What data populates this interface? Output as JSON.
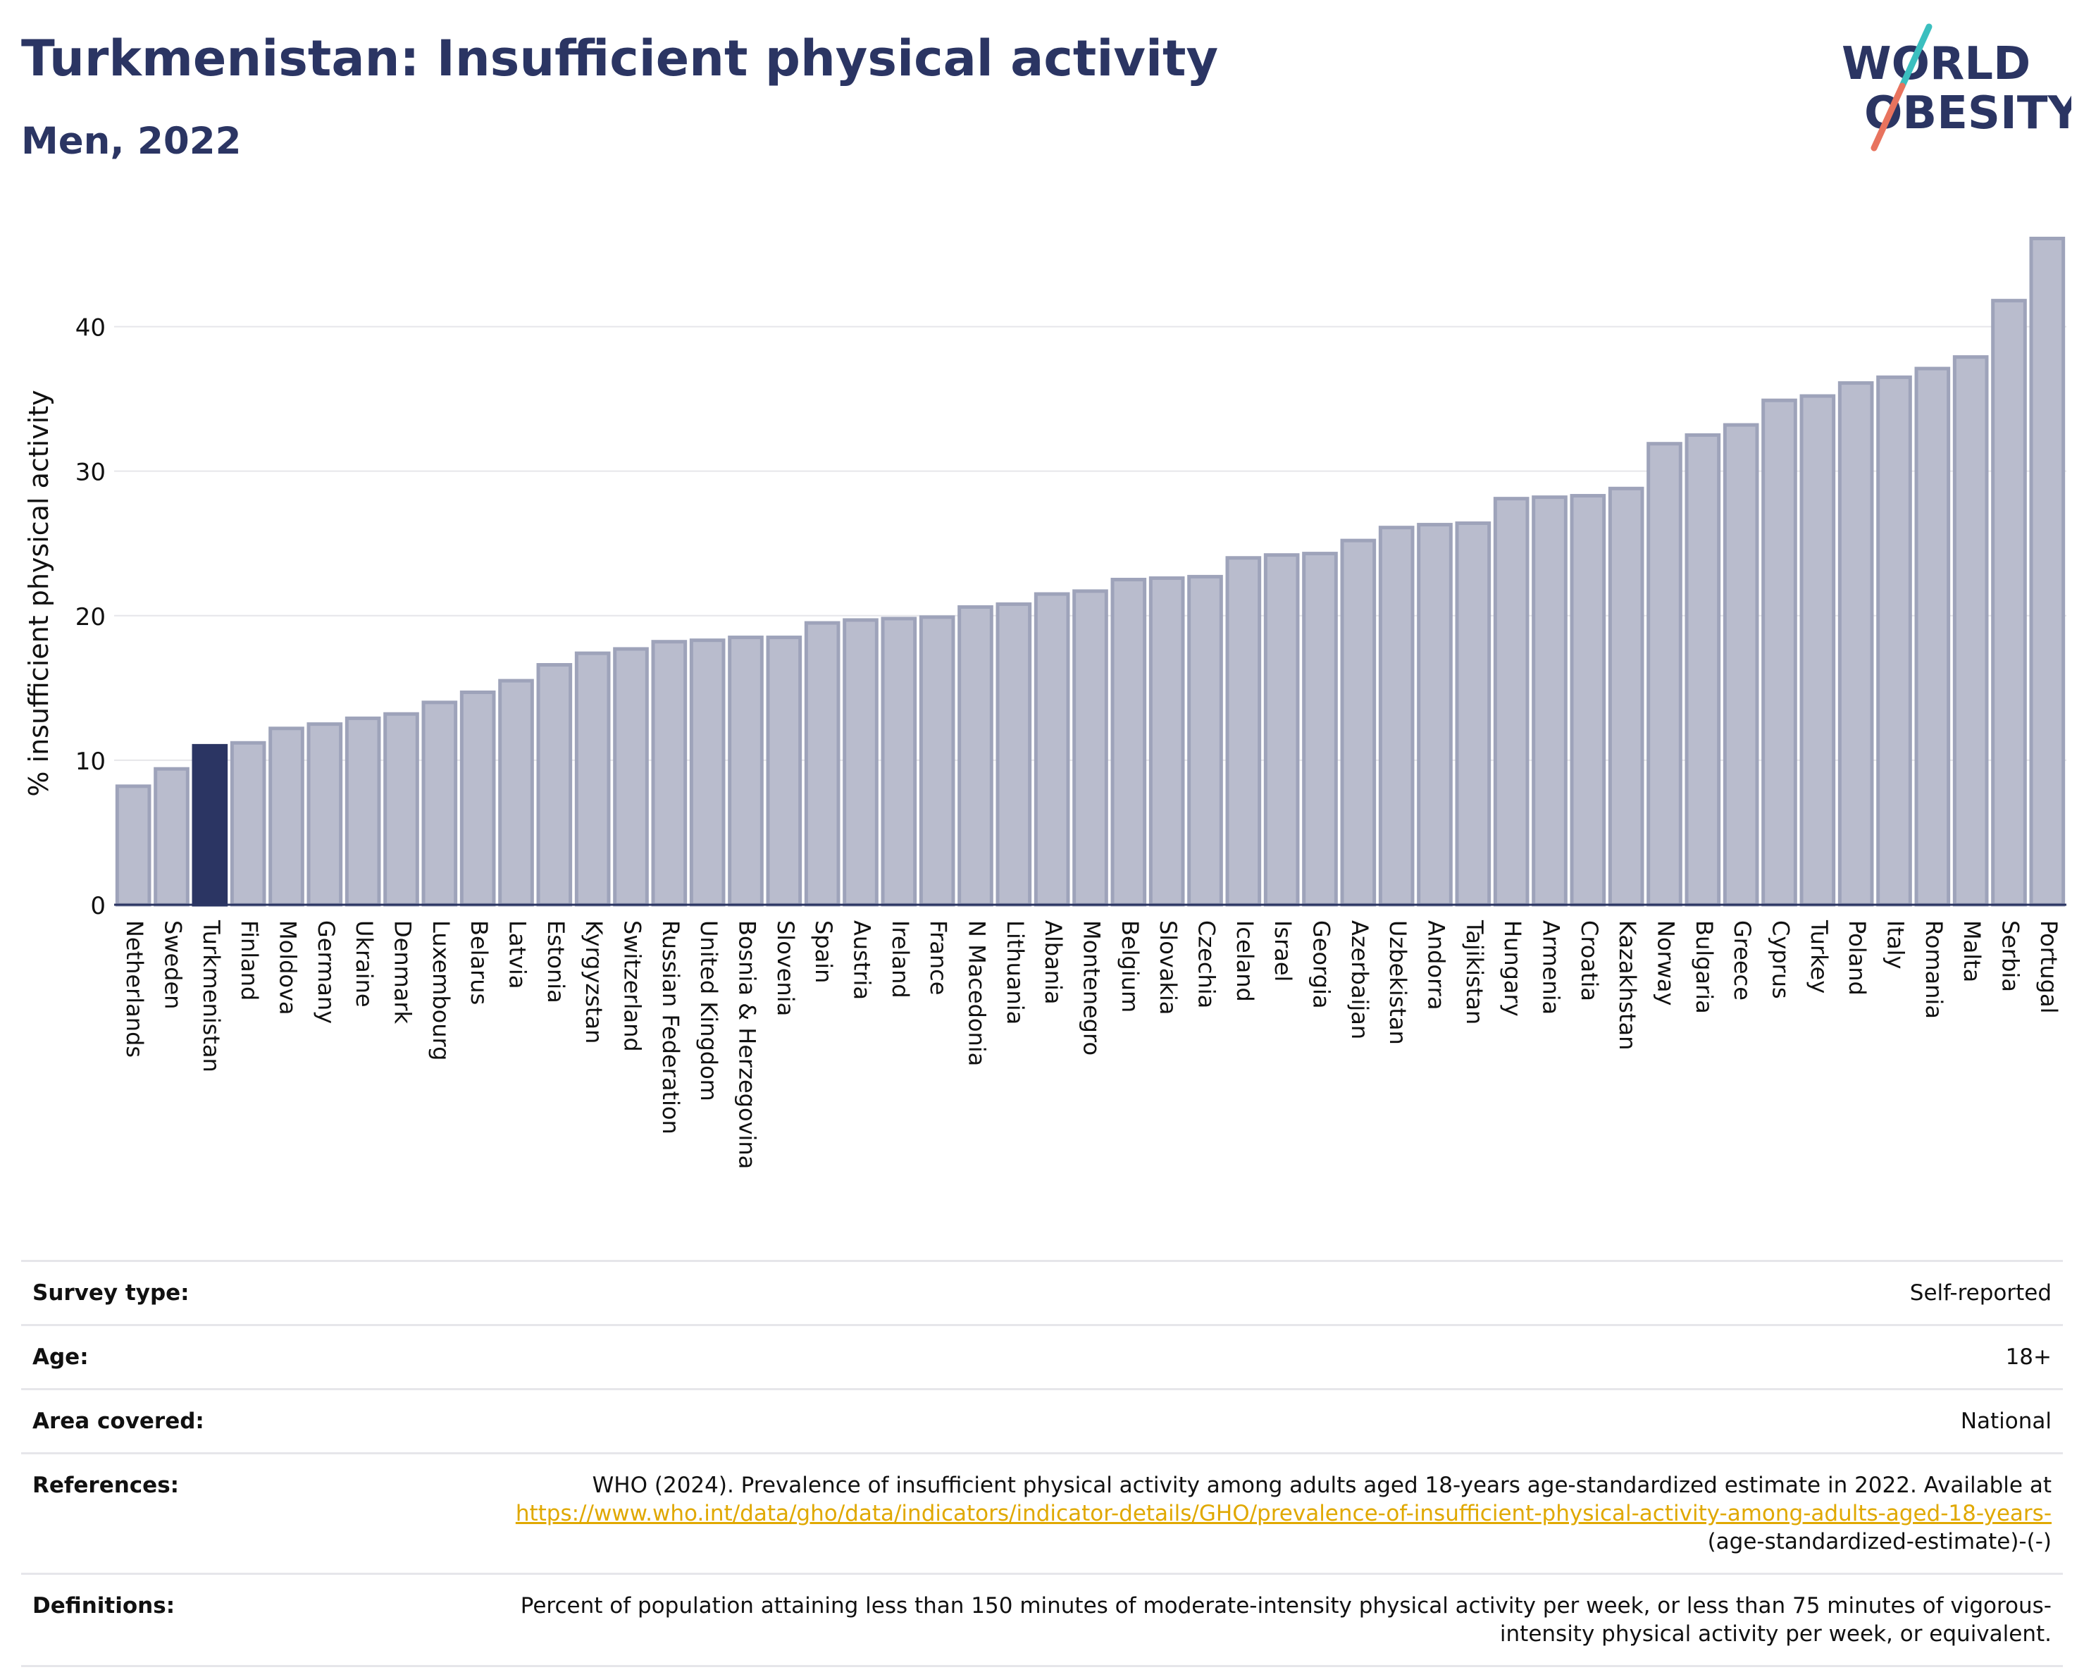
{
  "header": {
    "title": "Turkmenistan: Insufficient physical activity",
    "subtitle": "Men, 2022",
    "logo_line1": "WORLD",
    "logo_line2": "OBESITY"
  },
  "colors": {
    "bar": "#b9bccd",
    "bar_stroke": "#9ea3ba",
    "highlight": "#2b3563",
    "logo_text": "#2b3563",
    "logo_slash_top": "#3bbfbf",
    "logo_slash_bottom": "#e8735e",
    "link": "#e0a800"
  },
  "chart_data": {
    "type": "bar",
    "ylabel": "% insufficient physical activity",
    "ylim": [
      0,
      47
    ],
    "yticks": [
      0,
      10,
      20,
      30,
      40
    ],
    "grid": true,
    "highlight": "Turkmenistan",
    "categories": [
      "Netherlands",
      "Sweden",
      "Turkmenistan",
      "Finland",
      "Moldova",
      "Germany",
      "Ukraine",
      "Denmark",
      "Luxembourg",
      "Belarus",
      "Latvia",
      "Estonia",
      "Kyrgyzstan",
      "Switzerland",
      "Russian Federation",
      "United Kingdom",
      "Bosnia & Herzegovina",
      "Slovenia",
      "Spain",
      "Austria",
      "Ireland",
      "France",
      "N Macedonia",
      "Lithuania",
      "Albania",
      "Montenegro",
      "Belgium",
      "Slovakia",
      "Czechia",
      "Iceland",
      "Israel",
      "Georgia",
      "Azerbaijan",
      "Uzbekistan",
      "Andorra",
      "Tajikistan",
      "Hungary",
      "Armenia",
      "Croatia",
      "Kazakhstan",
      "Norway",
      "Bulgaria",
      "Greece",
      "Cyprus",
      "Turkey",
      "Poland",
      "Italy",
      "Romania",
      "Malta",
      "Serbia",
      "Portugal"
    ],
    "values": [
      8.2,
      9.4,
      11.0,
      11.2,
      12.2,
      12.5,
      12.9,
      13.2,
      14.0,
      14.7,
      15.5,
      16.6,
      17.4,
      17.7,
      18.2,
      18.3,
      18.5,
      18.5,
      19.5,
      19.7,
      19.8,
      19.9,
      20.6,
      20.8,
      21.5,
      21.7,
      22.5,
      22.6,
      22.7,
      24.0,
      24.2,
      24.3,
      25.2,
      26.1,
      26.3,
      26.4,
      28.1,
      28.2,
      28.3,
      28.8,
      31.9,
      32.5,
      33.2,
      34.9,
      35.2,
      36.1,
      36.5,
      37.1,
      37.9,
      41.8,
      46.1
    ]
  },
  "meta": {
    "survey_type": {
      "label": "Survey type:",
      "value": "Self-reported"
    },
    "age": {
      "label": "Age:",
      "value": "18+"
    },
    "area": {
      "label": "Area covered:",
      "value": "National"
    },
    "references": {
      "label": "References:",
      "text": "WHO (2024). Prevalence of insufficient physical activity among adults aged 18-years age-standardized estimate in 2022. Available at",
      "link": "https://www.who.int/data/gho/data/indicators/indicator-details/GHO/prevalence-of-insufficient-physical-activity-among-adults-aged-18-years-",
      "suffix": "(age-standardized-estimate)-(-)"
    },
    "definitions": {
      "label": "Definitions:",
      "value": "Percent of population attaining less than 150 minutes of moderate-intensity physical activity per week, or less than 75 minutes of vigorous-intensity physical activity per week, or equivalent."
    }
  }
}
